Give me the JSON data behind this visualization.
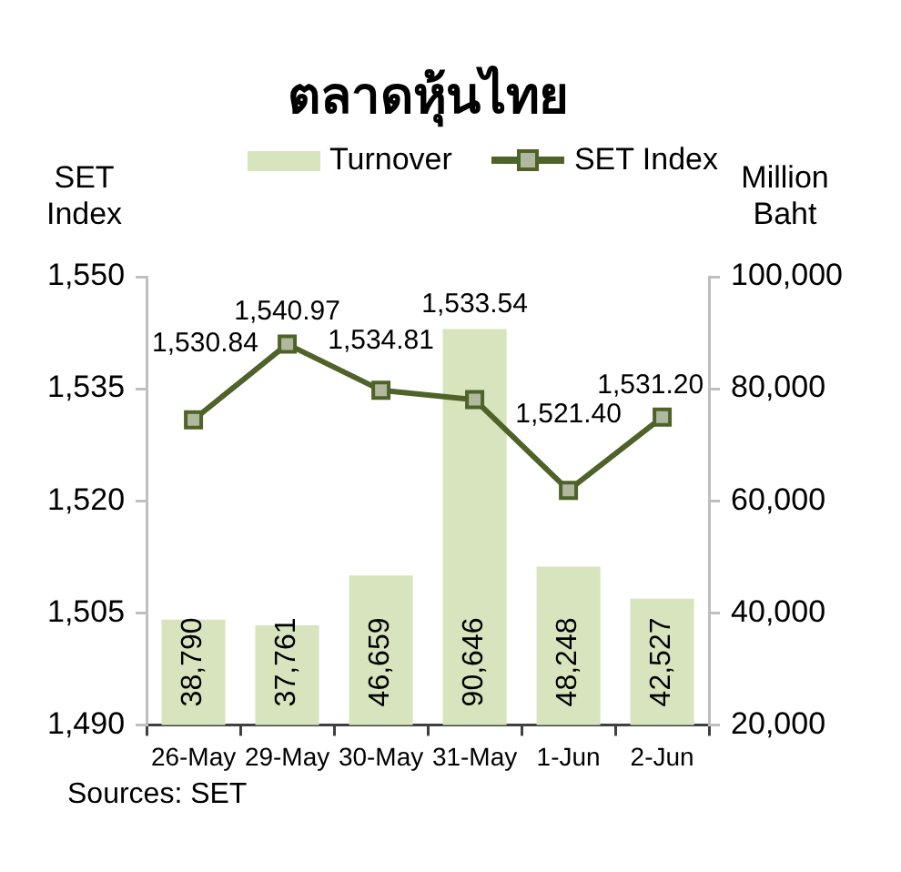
{
  "chart_data": {
    "type": "bar",
    "title": "ตลาดหุ้นไทย",
    "ylabel": "SET Index",
    "y2label": "Million Baht",
    "categories": [
      "26-May",
      "29-May",
      "30-May",
      "31-May",
      "1-Jun",
      "2-Jun"
    ],
    "series": [
      {
        "name": "Turnover",
        "axis": "y2",
        "color": "#d7e4bd",
        "values": [
          38790,
          37761,
          46659,
          90646,
          48248,
          42527
        ],
        "value_labels": [
          "38,790",
          "37,761",
          "46,659",
          "90,646",
          "48,248",
          "42,527"
        ]
      },
      {
        "name": "SET Index",
        "type": "line",
        "axis": "y",
        "color": "#4f6228",
        "values": [
          1530.84,
          1540.97,
          1534.81,
          1533.54,
          1521.4,
          1531.2
        ],
        "value_labels": [
          "1,530.84",
          "1,540.97",
          "1,534.81",
          "1,533.54",
          "1,521.40",
          "1,531.20"
        ]
      }
    ],
    "ylim": [
      1490,
      1550
    ],
    "yticks": [
      {
        "value": 1490,
        "label": "1,490"
      },
      {
        "value": 1505,
        "label": "1,505"
      },
      {
        "value": 1520,
        "label": "1,520"
      },
      {
        "value": 1535,
        "label": "1,535"
      },
      {
        "value": 1550,
        "label": "1,550"
      }
    ],
    "y2lim": [
      20000,
      100000
    ],
    "y2ticks": [
      {
        "value": 20000,
        "label": "20,000"
      },
      {
        "value": 40000,
        "label": "40,000"
      },
      {
        "value": 60000,
        "label": "60,000"
      },
      {
        "value": 80000,
        "label": "80,000"
      },
      {
        "value": 100000,
        "label": "100,000"
      }
    ],
    "legend": "top",
    "marker": "square",
    "grid": false,
    "annotations": [
      "Sources: SET"
    ]
  }
}
